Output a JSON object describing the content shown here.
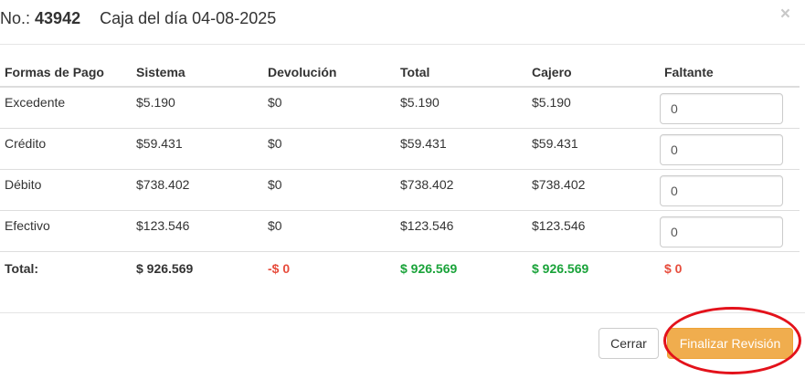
{
  "header": {
    "number_label": "No.:",
    "number_value": "43942",
    "subtitle": "Caja del día 04-08-2025",
    "close_symbol": "×"
  },
  "table": {
    "columns": [
      "Formas de Pago",
      "Sistema",
      "Devolución",
      "Total",
      "Cajero",
      "Faltante"
    ],
    "rows": [
      {
        "forma": "Excedente",
        "sistema": "$5.190",
        "devolucion": "$0",
        "total": "$5.190",
        "cajero": "$5.190",
        "faltante": "0"
      },
      {
        "forma": "Crédito",
        "sistema": "$59.431",
        "devolucion": "$0",
        "total": "$59.431",
        "cajero": "$59.431",
        "faltante": "0"
      },
      {
        "forma": "Débito",
        "sistema": "$738.402",
        "devolucion": "$0",
        "total": "$738.402",
        "cajero": "$738.402",
        "faltante": "0"
      },
      {
        "forma": "Efectivo",
        "sistema": "$123.546",
        "devolucion": "$0",
        "total": "$123.546",
        "cajero": "$123.546",
        "faltante": "0"
      }
    ],
    "totals": {
      "label": "Total:",
      "sistema": "$ 926.569",
      "devolucion": "-$ 0",
      "total": "$ 926.569",
      "cajero": "$ 926.569",
      "faltante": "$ 0"
    }
  },
  "footer": {
    "close_label": "Cerrar",
    "finish_label": "Finalizar Revisión"
  },
  "colors": {
    "negative": "#e74c3c",
    "positive": "#1aa33a",
    "warning_button": "#f0ad4e",
    "highlight_circle": "#e3121b"
  }
}
